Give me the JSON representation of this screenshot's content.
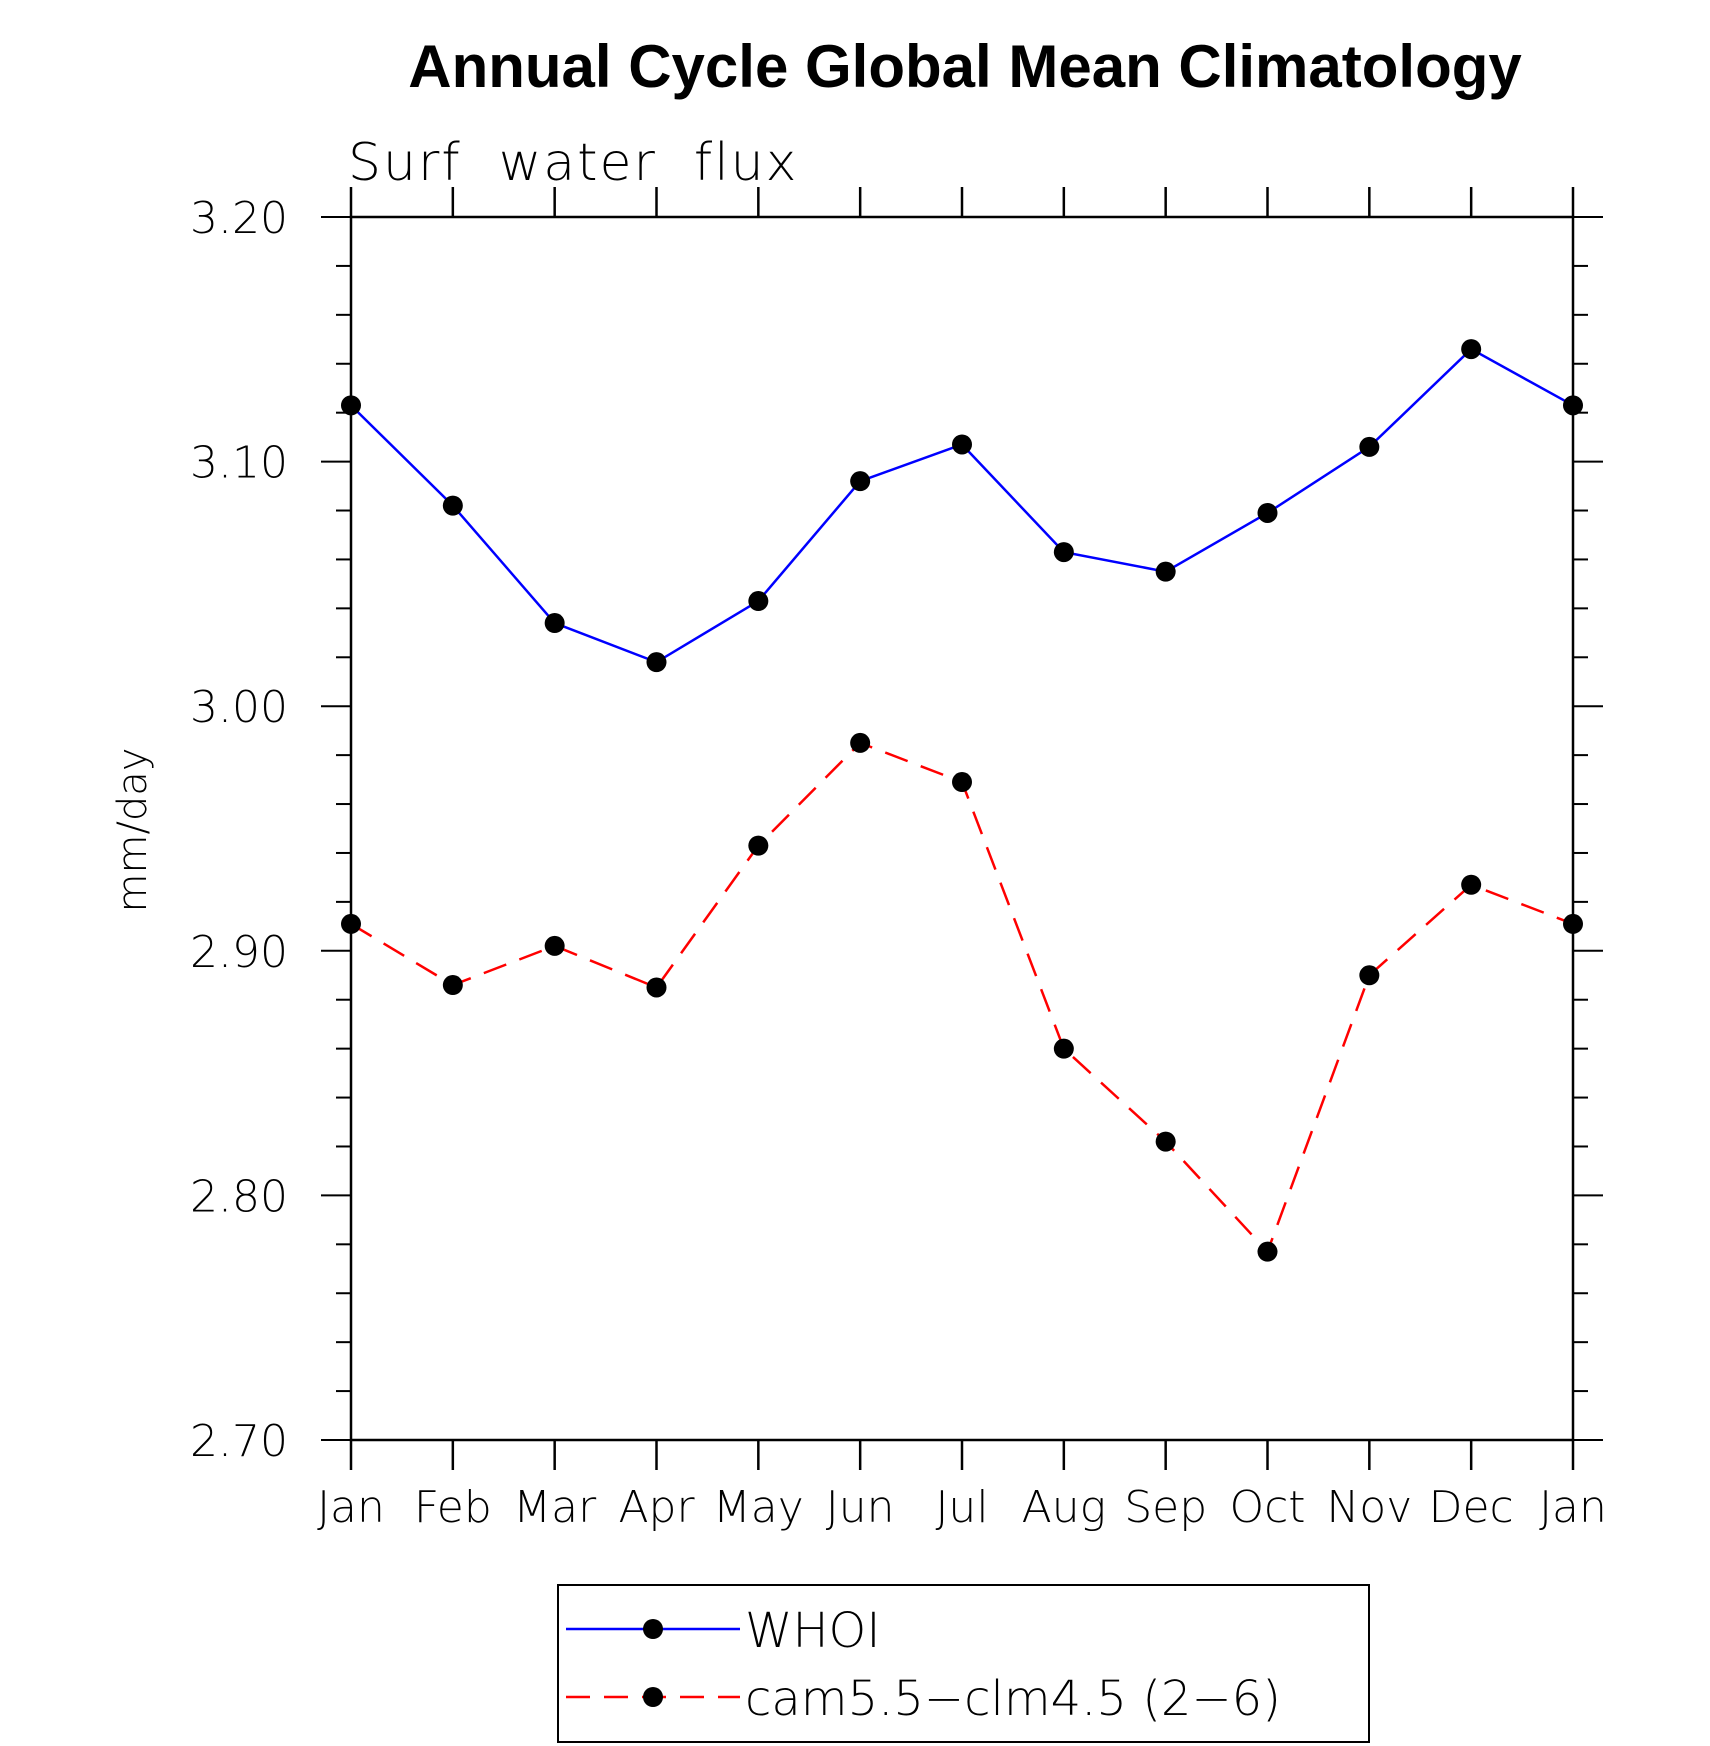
{
  "chart_data": {
    "type": "line",
    "title": "Annual Cycle Global Mean Climatology",
    "subtitle": "Surf  water  flux",
    "xlabel": "",
    "ylabel": "mm/day",
    "categories": [
      "Jan",
      "Feb",
      "Mar",
      "Apr",
      "May",
      "Jun",
      "Jul",
      "Aug",
      "Sep",
      "Oct",
      "Nov",
      "Dec",
      "Jan"
    ],
    "ylim": [
      2.7,
      3.2
    ],
    "yticks": [
      "3.20",
      "3.10",
      "3.00",
      "2.90",
      "2.80",
      "2.70"
    ],
    "grid": false,
    "legend_position": "bottom-center",
    "series": [
      {
        "name": "WHOI",
        "color": "#0000ff",
        "line_style": "solid",
        "marker": "filled-circle",
        "values": [
          3.123,
          3.082,
          3.034,
          3.018,
          3.043,
          3.092,
          3.107,
          3.063,
          3.055,
          3.079,
          3.106,
          3.146,
          3.123
        ]
      },
      {
        "name": "cam5.5−clm4.5 (2−6)",
        "color": "#ff0000",
        "line_style": "dashed",
        "marker": "filled-circle",
        "values": [
          2.911,
          2.886,
          2.902,
          2.885,
          2.943,
          2.985,
          2.969,
          2.86,
          2.822,
          2.777,
          2.89,
          2.927,
          2.911
        ]
      }
    ]
  }
}
